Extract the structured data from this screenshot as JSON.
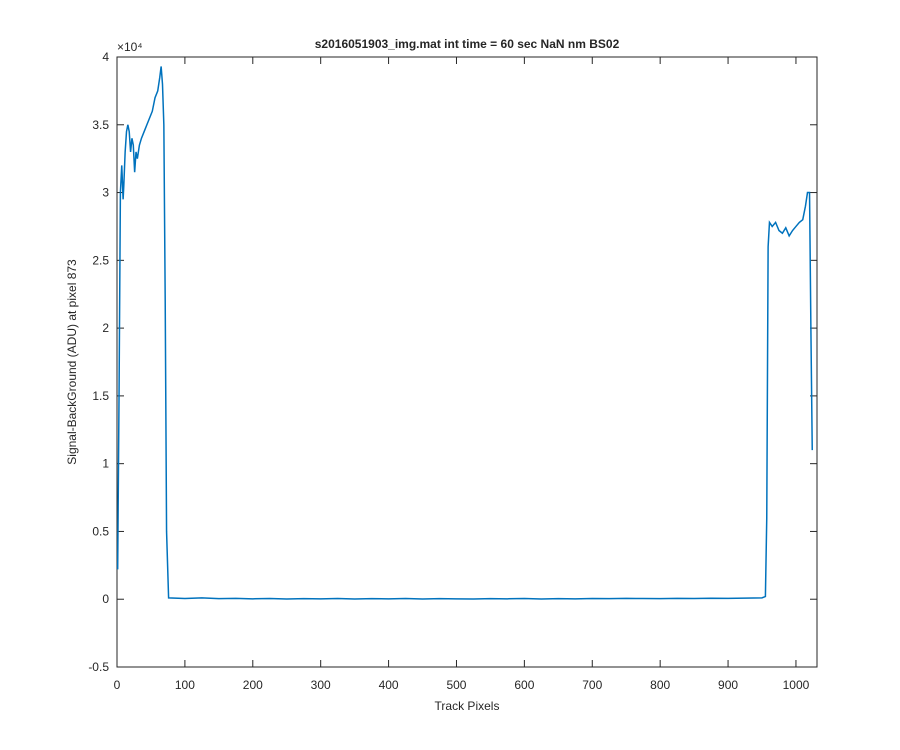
{
  "chart_data": {
    "type": "line",
    "title": "s2016051903_img.mat int time = 60 sec  NaN nm BS02",
    "x_label": "Track Pixels",
    "y_label": "Signal-BackGround (ADU) at pixel 873",
    "y_exponent_label": "×10⁴",
    "x": [
      1,
      3,
      5,
      7,
      9,
      10,
      12,
      14,
      16,
      18,
      20,
      22,
      24,
      26,
      28,
      30,
      33,
      36,
      40,
      44,
      48,
      52,
      56,
      60,
      63,
      65,
      67,
      69,
      71,
      73,
      76,
      100,
      125,
      150,
      175,
      200,
      225,
      250,
      275,
      300,
      325,
      350,
      375,
      400,
      425,
      450,
      475,
      500,
      525,
      550,
      575,
      600,
      625,
      650,
      675,
      700,
      725,
      750,
      775,
      800,
      825,
      850,
      875,
      900,
      925,
      950,
      955,
      957,
      959,
      961,
      965,
      970,
      975,
      980,
      985,
      990,
      995,
      1000,
      1005,
      1010,
      1014,
      1017,
      1020,
      1022,
      1024
    ],
    "values": [
      0.22,
      1.5,
      3.0,
      3.2,
      2.95,
      3.05,
      3.3,
      3.45,
      3.5,
      3.45,
      3.3,
      3.4,
      3.35,
      3.15,
      3.3,
      3.25,
      3.35,
      3.4,
      3.45,
      3.5,
      3.55,
      3.6,
      3.7,
      3.75,
      3.85,
      3.93,
      3.8,
      3.5,
      2.2,
      0.5,
      0.01,
      0.005,
      0.01,
      0.004,
      0.006,
      0.003,
      0.005,
      0.002,
      0.004,
      0.003,
      0.005,
      0.002,
      0.004,
      0.003,
      0.005,
      0.002,
      0.004,
      0.003,
      0.002,
      0.004,
      0.003,
      0.005,
      0.002,
      0.004,
      0.003,
      0.005,
      0.004,
      0.006,
      0.005,
      0.004,
      0.006,
      0.005,
      0.007,
      0.006,
      0.008,
      0.01,
      0.02,
      0.6,
      2.6,
      2.78,
      2.75,
      2.78,
      2.72,
      2.7,
      2.74,
      2.68,
      2.72,
      2.75,
      2.78,
      2.8,
      2.9,
      3.0,
      3.0,
      2.0,
      1.1
    ],
    "color": "#0072BD",
    "xlim": [
      0,
      1031
    ],
    "xticks": [
      0,
      100,
      200,
      300,
      400,
      500,
      600,
      700,
      800,
      900,
      1000
    ],
    "ylim": [
      -0.5,
      4
    ],
    "yticks": [
      -0.5,
      0,
      0.5,
      1,
      1.5,
      2,
      2.5,
      3,
      3.5,
      4
    ]
  }
}
